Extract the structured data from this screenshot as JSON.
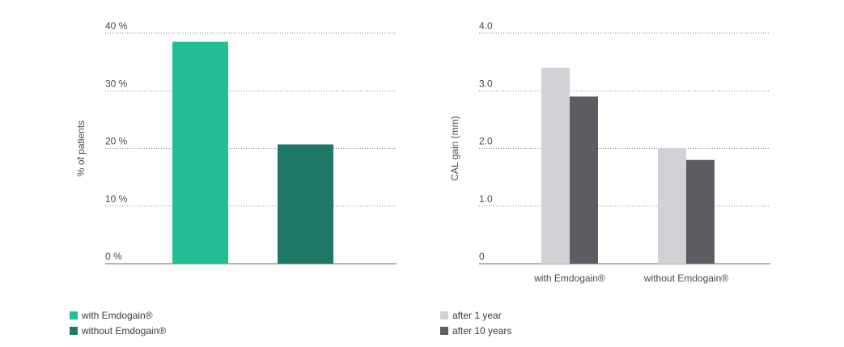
{
  "chart_data": [
    {
      "type": "bar",
      "categories": [
        "with Emdogain®",
        "without Emdogain®"
      ],
      "values": [
        38.5,
        20.7
      ],
      "ylabel": "% of patients",
      "xlabel": "",
      "ylim": [
        0,
        40
      ],
      "yticks": [
        "0 %",
        "10 %",
        "20 %",
        "30 %",
        "40 %"
      ],
      "show_category_labels": false,
      "grid": "dotted horizontal",
      "colors": [
        "#22bd97",
        "#1e7767"
      ],
      "legend": {
        "placement": "bottom-left",
        "entries": [
          {
            "label": "with Emdogain®",
            "color": "#22bd97"
          },
          {
            "label": "without Emdogain®",
            "color": "#1e7767"
          }
        ]
      }
    },
    {
      "type": "bar",
      "categories": [
        "with Emdogain®",
        "without Emdogain®"
      ],
      "series": [
        {
          "name": "after 1 year",
          "values": [
            3.4,
            2.0
          ],
          "color": "#d2d2d6"
        },
        {
          "name": "after 10 years",
          "values": [
            2.9,
            1.8
          ],
          "color": "#5c5c62"
        }
      ],
      "ylabel": "CAL gain (mm)",
      "xlabel": "",
      "ylim": [
        0,
        4
      ],
      "yticks": [
        "0",
        "1.0",
        "2.0",
        "3.0",
        "4.0"
      ],
      "show_category_labels": true,
      "grid": "dotted horizontal",
      "legend": {
        "placement": "bottom-left",
        "entries": [
          {
            "label": "after 1 year",
            "color": "#d2d2d6"
          },
          {
            "label": "after 10 years",
            "color": "#5c5c62"
          }
        ]
      }
    }
  ]
}
